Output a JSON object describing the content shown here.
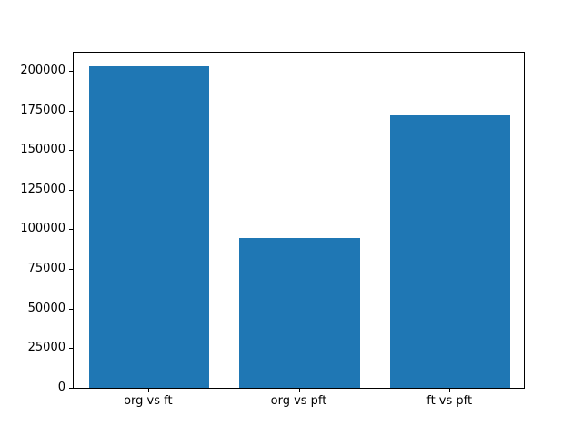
{
  "window": {
    "background": "#ffffff"
  },
  "chart_data": {
    "type": "bar",
    "title": "",
    "xlabel": "",
    "ylabel": "",
    "categories": [
      "org vs ft",
      "org vs pft",
      "ft vs pft"
    ],
    "values": [
      203000,
      94500,
      172000
    ],
    "bar_color": "#1f77b4",
    "axis_color": "#000000",
    "ylim": [
      0,
      212600
    ],
    "yticks": [
      0,
      25000,
      50000,
      75000,
      100000,
      125000,
      150000,
      175000,
      200000
    ],
    "ytick_labels": [
      "0",
      "25000",
      "50000",
      "75000",
      "100000",
      "125000",
      "150000",
      "175000",
      "200000"
    ],
    "grid": false,
    "legend_position": "none",
    "bar_width_fraction": 0.8
  }
}
